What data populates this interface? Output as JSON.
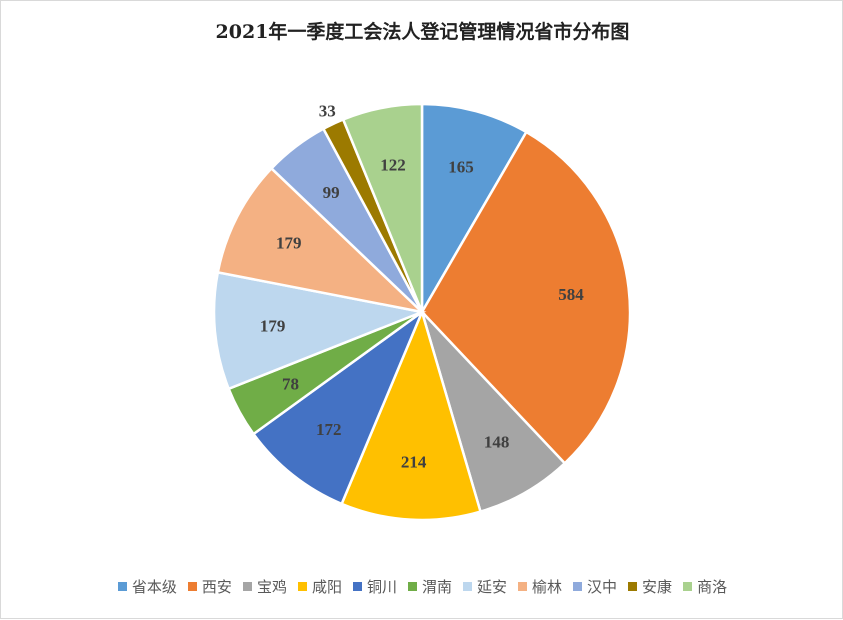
{
  "chart_data": {
    "type": "pie",
    "title": "2021年一季度工会法人登记管理情况省市分布图",
    "categories": [
      "省本级",
      "西安",
      "宝鸡",
      "咸阳",
      "铜川",
      "渭南",
      "延安",
      "榆林",
      "汉中",
      "安康",
      "商洛"
    ],
    "values": [
      165,
      584,
      148,
      214,
      172,
      78,
      179,
      179,
      99,
      33,
      122
    ],
    "colors": [
      "#5b9bd5",
      "#ed7d31",
      "#a5a5a5",
      "#ffc000",
      "#4472c4",
      "#70ad47",
      "#bdd7ee",
      "#f4b183",
      "#8faadc",
      "#9c7a00",
      "#a9d18e"
    ],
    "legend_position": "bottom",
    "data_labels": true
  }
}
